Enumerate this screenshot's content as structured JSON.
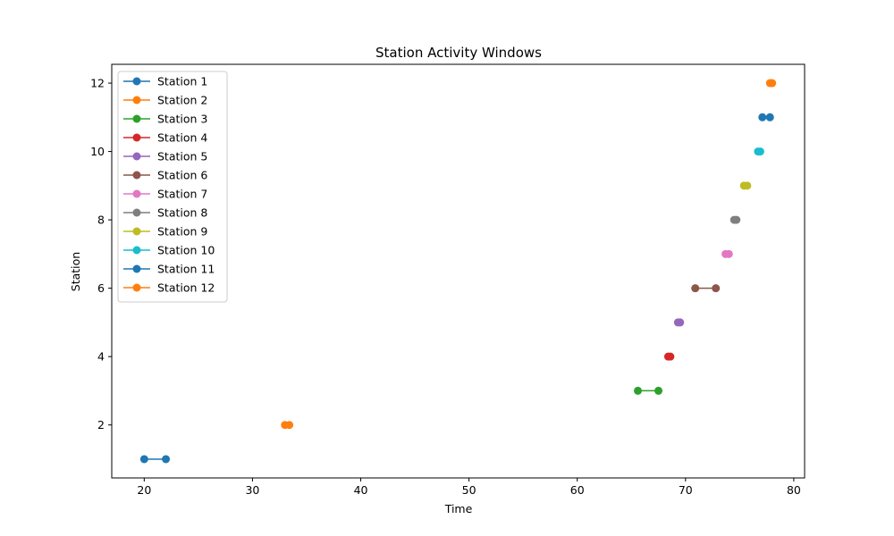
{
  "chart_data": {
    "type": "line",
    "title": "Station Activity Windows",
    "xlabel": "Time",
    "ylabel": "Station",
    "xlim": [
      17,
      81
    ],
    "ylim": [
      0.45,
      12.55
    ],
    "x_ticks": [
      20,
      30,
      40,
      50,
      60,
      70,
      80
    ],
    "y_ticks": [
      2,
      4,
      6,
      8,
      10,
      12
    ],
    "grid": false,
    "legend_position": "upper-left",
    "series": [
      {
        "name": "Station 1",
        "color": "#1f77b4",
        "x": [
          20.0,
          22.0
        ],
        "y": [
          1,
          1
        ]
      },
      {
        "name": "Station 2",
        "color": "#ff7f0e",
        "x": [
          33.0,
          33.4
        ],
        "y": [
          2,
          2
        ]
      },
      {
        "name": "Station 3",
        "color": "#2ca02c",
        "x": [
          65.6,
          67.5
        ],
        "y": [
          3,
          3
        ]
      },
      {
        "name": "Station 4",
        "color": "#d62728",
        "x": [
          68.4,
          68.6
        ],
        "y": [
          4,
          4
        ]
      },
      {
        "name": "Station 5",
        "color": "#9467bd",
        "x": [
          69.3,
          69.5
        ],
        "y": [
          5,
          5
        ]
      },
      {
        "name": "Station 6",
        "color": "#8c564b",
        "x": [
          70.9,
          72.8
        ],
        "y": [
          6,
          6
        ]
      },
      {
        "name": "Station 7",
        "color": "#e377c2",
        "x": [
          73.7,
          74.0
        ],
        "y": [
          7,
          7
        ]
      },
      {
        "name": "Station 8",
        "color": "#7f7f7f",
        "x": [
          74.5,
          74.7
        ],
        "y": [
          8,
          8
        ]
      },
      {
        "name": "Station 9",
        "color": "#bcbd22",
        "x": [
          75.4,
          75.7
        ],
        "y": [
          9,
          9
        ]
      },
      {
        "name": "Station 10",
        "color": "#17becf",
        "x": [
          76.7,
          76.9
        ],
        "y": [
          10,
          10
        ]
      },
      {
        "name": "Station 11",
        "color": "#1f77b4",
        "x": [
          77.1,
          77.8
        ],
        "y": [
          11,
          11
        ]
      },
      {
        "name": "Station 12",
        "color": "#ff7f0e",
        "x": [
          77.8,
          78.0
        ],
        "y": [
          12,
          12
        ]
      }
    ]
  }
}
